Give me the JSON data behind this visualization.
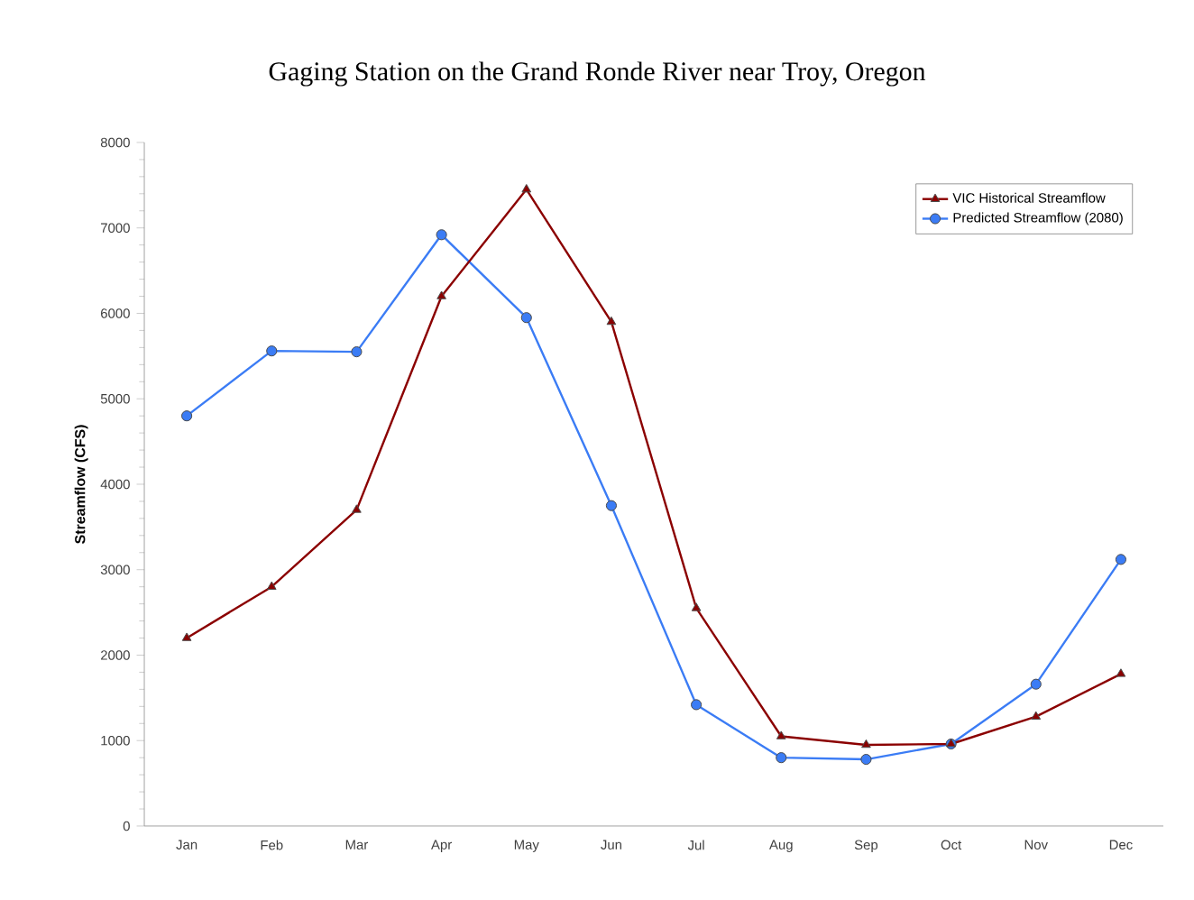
{
  "chart_data": {
    "type": "line",
    "title": "Gaging Station on the Grand Ronde River near Troy, Oregon",
    "ylabel": "Streamflow (CFS)",
    "categories": [
      "Jan",
      "Feb",
      "Mar",
      "Apr",
      "May",
      "Jun",
      "Jul",
      "Aug",
      "Sep",
      "Oct",
      "Nov",
      "Dec"
    ],
    "series": [
      {
        "name": "VIC Historical Streamflow",
        "color": "#8b0000",
        "marker": "triangle",
        "values": [
          2200,
          2800,
          3700,
          6200,
          7450,
          5900,
          2550,
          1050,
          950,
          960,
          1280,
          1780
        ]
      },
      {
        "name": "Predicted Streamflow (2080)",
        "color": "#3b7cf5",
        "marker": "circle",
        "values": [
          4800,
          5560,
          5550,
          6920,
          5950,
          3750,
          1420,
          800,
          780,
          960,
          1660,
          3120
        ]
      }
    ],
    "ylim": [
      0,
      8000
    ],
    "yticks": [
      0,
      1000,
      2000,
      3000,
      4000,
      5000,
      6000,
      7000,
      8000
    ],
    "grid": false,
    "legend": "top right",
    "line_style": "solid"
  }
}
